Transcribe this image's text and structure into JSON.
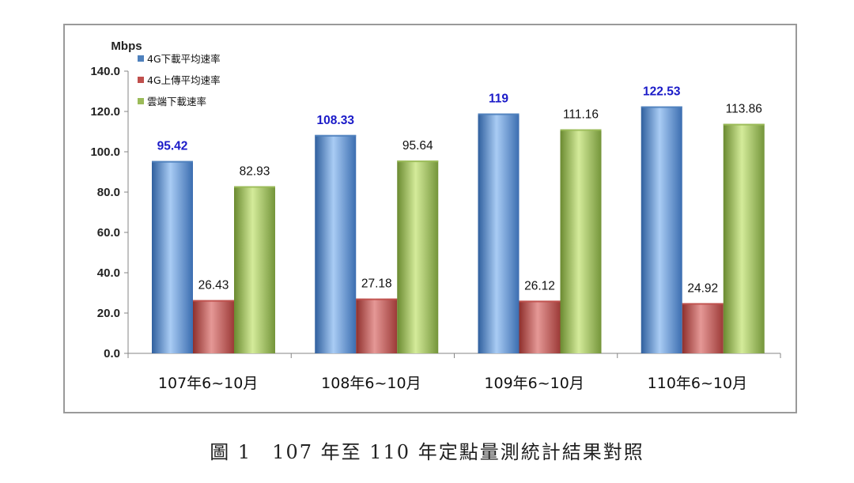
{
  "chart_data": {
    "type": "bar",
    "ylabel": "Mbps",
    "ylim": [
      0,
      140
    ],
    "yticks": [
      "0.0",
      "20.0",
      "40.0",
      "60.0",
      "80.0",
      "100.0",
      "120.0",
      "140.0"
    ],
    "categories": [
      "107年6~10月",
      "108年6~10月",
      "109年6~10月",
      "110年6~10月"
    ],
    "legend_position": "top-left",
    "grid": false,
    "series": [
      {
        "name": "4G下載平均速率",
        "values": [
          95.42,
          108.33,
          119,
          122.53
        ],
        "labels": [
          "95.42",
          "108.33",
          "119",
          "122.53"
        ],
        "color": "#4f81bd",
        "label_color": "#1a1ac8"
      },
      {
        "name": "4G上傳平均速率",
        "values": [
          26.43,
          27.18,
          26.12,
          24.92
        ],
        "labels": [
          "26.43",
          "27.18",
          "26.12",
          "24.92"
        ],
        "color": "#c0504d",
        "label_color": "#111111"
      },
      {
        "name": "雲端下載速率",
        "values": [
          82.93,
          95.64,
          111.16,
          113.86
        ],
        "labels": [
          "82.93",
          "95.64",
          "111.16",
          "113.86"
        ],
        "color": "#9bbb59",
        "label_color": "#111111"
      }
    ]
  },
  "caption": "圖 1　107 年至 110 年定點量測統計結果對照"
}
